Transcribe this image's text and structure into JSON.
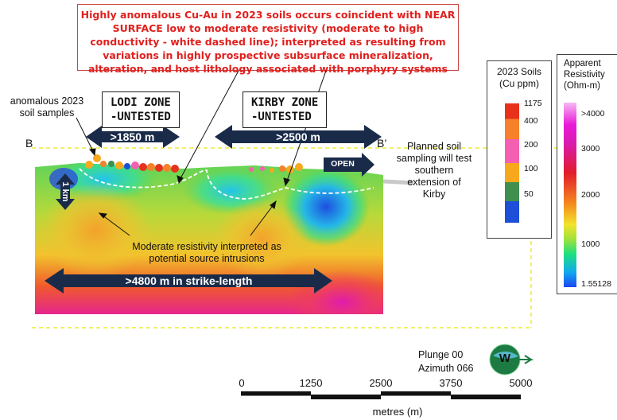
{
  "callout_text": "Highly anomalous Cu-Au in 2023 soils occurs coincident with NEAR SURFACE low to moderate resistivity (moderate to high conductivity - white dashed line); interpreted as resulting from variations in highly prospective subsurface mineralization, alteration, and host lithology associated with porphyry systems",
  "zones": {
    "lodi": {
      "line1": "LODI ZONE",
      "line2": "-UNTESTED",
      "extent": ">1850 m"
    },
    "kirby": {
      "line1": "KIRBY ZONE",
      "line2": "-UNTESTED",
      "extent": ">2500 m"
    }
  },
  "labels": {
    "anomalous": "anomalous 2023 soil samples",
    "section_start": "B",
    "section_end": "B’",
    "open": "OPEN",
    "planned": "Planned soil sampling will test southern extension of Kirby",
    "vertical_scale": "1 km",
    "intrusions": "Moderate resistivity interpreted as potential source intrusions",
    "strike_length": ">4800 m in strike-length",
    "plunge": "Plunge 00",
    "azimuth": "Azimuth 066",
    "compass": "W"
  },
  "soils_legend": {
    "title_line1": "2023 Soils",
    "title_line2": "(Cu ppm)",
    "values": [
      "1175",
      "400",
      "200",
      "100",
      "50"
    ],
    "colors": [
      "#e8311b",
      "#f7802a",
      "#f45fb1",
      "#f7a81c",
      "#3f8f4f",
      "#1d4fd8"
    ]
  },
  "resistivity_legend": {
    "title_line1": "Apparent",
    "title_line2": "Resistivity",
    "title_line3": "(Ohm-m)",
    "values": [
      ">4000",
      "3000",
      "2000",
      "1000",
      "1.55128"
    ],
    "colors": [
      "#f2a0f2",
      "#e91ad8",
      "#e21c2b",
      "#f58b1e",
      "#f2e32c",
      "#9fe23a",
      "#1ee07d",
      "#10a8f0",
      "#1a45f0"
    ]
  },
  "scale_bar": {
    "ticks": [
      "0",
      "1250",
      "2500",
      "3750",
      "5000"
    ],
    "unit": "metres (m)"
  }
}
